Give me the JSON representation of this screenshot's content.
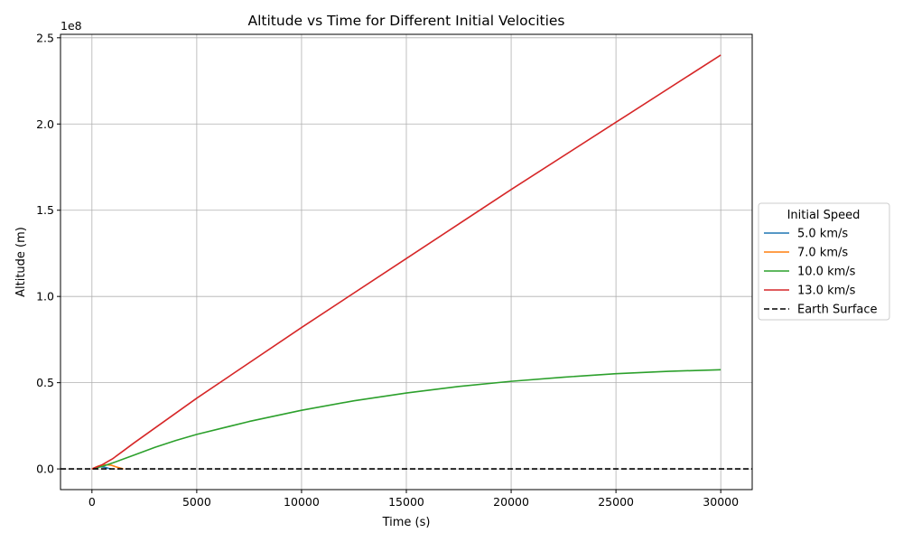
{
  "chart_data": {
    "type": "line",
    "title": "Altitude vs Time for Different Initial Velocities",
    "xlabel": "Time (s)",
    "ylabel": "Altitude (m)",
    "y_offset_label": "1e8",
    "xlim": [
      -1500,
      31500
    ],
    "ylim": [
      -12000000,
      252000000
    ],
    "x_ticks": [
      0,
      5000,
      10000,
      15000,
      20000,
      25000,
      30000
    ],
    "x_tick_labels": [
      "0",
      "5000",
      "10000",
      "15000",
      "20000",
      "25000",
      "30000"
    ],
    "y_ticks": [
      0,
      50000000,
      100000000,
      150000000,
      200000000,
      250000000
    ],
    "y_tick_labels": [
      "0.0",
      "0.5",
      "1.0",
      "1.5",
      "2.0",
      "2.5"
    ],
    "grid": true,
    "legend": {
      "title": "Initial Speed",
      "placement": "center-right-outside"
    },
    "series": [
      {
        "name": "5.0 km/s",
        "color": "#1f77b4",
        "style": "solid",
        "x": [
          0,
          200,
          400,
          600,
          800,
          900
        ],
        "y": [
          0,
          900000,
          1250000,
          1000000,
          300000,
          0
        ]
      },
      {
        "name": "7.0 km/s",
        "color": "#ff7f0e",
        "style": "solid",
        "x": [
          0,
          300,
          600,
          900,
          1200,
          1500
        ],
        "y": [
          0,
          1600000,
          2400000,
          2200000,
          1000000,
          0
        ]
      },
      {
        "name": "10.0 km/s",
        "color": "#2ca02c",
        "style": "solid",
        "x": [
          0,
          500,
          1000,
          2000,
          3000,
          4000,
          5000,
          7500,
          10000,
          12500,
          15000,
          17500,
          20000,
          22500,
          25000,
          27500,
          30000
        ],
        "y": [
          0,
          1500000,
          3500000,
          8000000,
          12500000,
          16500000,
          20000000,
          27500000,
          34000000,
          39500000,
          44000000,
          47800000,
          50800000,
          53200000,
          55200000,
          56600000,
          57500000
        ]
      },
      {
        "name": "13.0 km/s",
        "color": "#d62728",
        "style": "solid",
        "x": [
          0,
          500,
          1000,
          1500,
          2000,
          5000,
          10000,
          15000,
          20000,
          25000,
          30000
        ],
        "y": [
          0,
          2500000,
          6000000,
          10500000,
          15000000,
          41000000,
          82000000,
          122000000,
          162000000,
          201000000,
          240000000
        ]
      },
      {
        "name": "Earth Surface",
        "color": "#000000",
        "style": "dashed",
        "hline": 0
      }
    ]
  }
}
